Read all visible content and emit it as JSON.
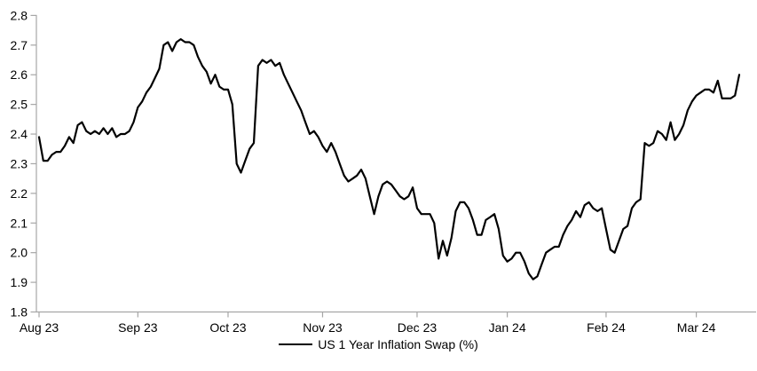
{
  "legend": {
    "label": "US 1 Year Inflation Swap (%)"
  },
  "colors": {
    "line": "#000000",
    "axis": "#a6a6a6",
    "text": "#000000",
    "background": "#ffffff"
  },
  "chart_data": {
    "type": "line",
    "title": "",
    "xlabel": "",
    "ylabel": "",
    "ylim": [
      1.8,
      2.8
    ],
    "grid": false,
    "legend_position": "bottom-center",
    "y_tick_labels": [
      "1.8",
      "1.9",
      "2.0",
      "2.1",
      "2.2",
      "2.3",
      "2.4",
      "2.5",
      "2.6",
      "2.7",
      "2.8"
    ],
    "x_tick_labels": [
      "Aug 23",
      "Sep 23",
      "Oct 23",
      "Nov 23",
      "Dec 23",
      "Jan 24",
      "Feb 24",
      "Mar 24"
    ],
    "x_tick_day_index": [
      0,
      23,
      44,
      66,
      88,
      109,
      132,
      153
    ],
    "series": [
      {
        "name": "US 1 Year Inflation Swap (%)",
        "color": "#000000",
        "frequency": "business-daily",
        "values": [
          2.39,
          2.31,
          2.31,
          2.33,
          2.34,
          2.34,
          2.36,
          2.39,
          2.37,
          2.43,
          2.44,
          2.41,
          2.4,
          2.41,
          2.4,
          2.42,
          2.4,
          2.42,
          2.39,
          2.4,
          2.4,
          2.41,
          2.44,
          2.49,
          2.51,
          2.54,
          2.56,
          2.59,
          2.62,
          2.7,
          2.71,
          2.68,
          2.71,
          2.72,
          2.71,
          2.71,
          2.7,
          2.66,
          2.63,
          2.61,
          2.57,
          2.6,
          2.56,
          2.55,
          2.55,
          2.5,
          2.3,
          2.27,
          2.31,
          2.35,
          2.37,
          2.63,
          2.65,
          2.64,
          2.65,
          2.63,
          2.64,
          2.6,
          2.57,
          2.54,
          2.51,
          2.48,
          2.44,
          2.4,
          2.41,
          2.39,
          2.36,
          2.34,
          2.37,
          2.34,
          2.3,
          2.26,
          2.24,
          2.25,
          2.26,
          2.28,
          2.25,
          2.19,
          2.13,
          2.19,
          2.23,
          2.24,
          2.23,
          2.21,
          2.19,
          2.18,
          2.19,
          2.22,
          2.15,
          2.13,
          2.13,
          2.13,
          2.1,
          1.98,
          2.04,
          1.99,
          2.05,
          2.14,
          2.17,
          2.17,
          2.15,
          2.11,
          2.06,
          2.06,
          2.11,
          2.12,
          2.13,
          2.08,
          1.99,
          1.97,
          1.98,
          2.0,
          2.0,
          1.97,
          1.93,
          1.91,
          1.92,
          1.96,
          2.0,
          2.01,
          2.02,
          2.02,
          2.06,
          2.09,
          2.11,
          2.14,
          2.12,
          2.16,
          2.17,
          2.15,
          2.14,
          2.15,
          2.08,
          2.01,
          2.0,
          2.04,
          2.08,
          2.09,
          2.15,
          2.17,
          2.18,
          2.37,
          2.36,
          2.37,
          2.41,
          2.4,
          2.38,
          2.44,
          2.38,
          2.4,
          2.43,
          2.48,
          2.51,
          2.53,
          2.54,
          2.55,
          2.55,
          2.54,
          2.58,
          2.52,
          2.52,
          2.52,
          2.53,
          2.6
        ]
      }
    ]
  }
}
